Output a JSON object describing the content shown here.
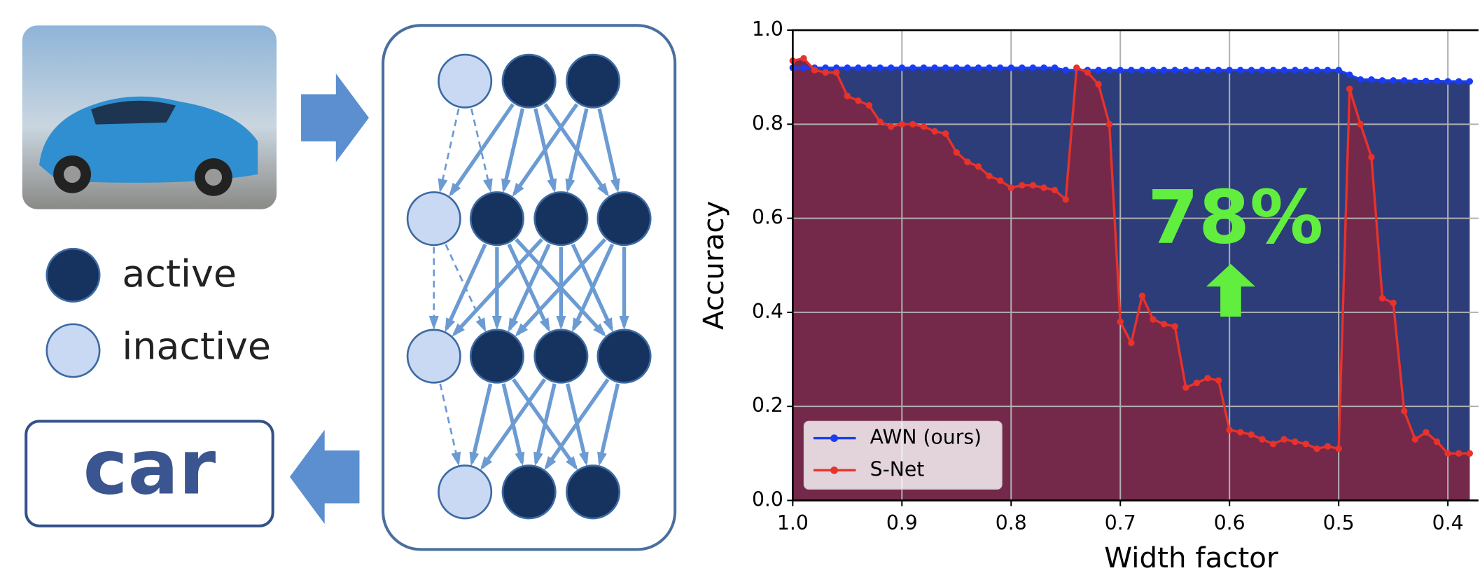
{
  "labels": {
    "active": "active",
    "inactive": "inactive",
    "output": "car"
  },
  "chart_data": {
    "type": "line",
    "x_label": "Width factor",
    "y_label": "Accuracy",
    "annotation": "78%",
    "x": [
      1.0,
      0.99,
      0.98,
      0.97,
      0.96,
      0.95,
      0.94,
      0.93,
      0.92,
      0.91,
      0.9,
      0.89,
      0.88,
      0.87,
      0.86,
      0.85,
      0.84,
      0.83,
      0.82,
      0.81,
      0.8,
      0.79,
      0.78,
      0.77,
      0.76,
      0.75,
      0.74,
      0.73,
      0.72,
      0.71,
      0.7,
      0.69,
      0.68,
      0.67,
      0.66,
      0.65,
      0.64,
      0.63,
      0.62,
      0.61,
      0.6,
      0.59,
      0.58,
      0.57,
      0.56,
      0.55,
      0.54,
      0.53,
      0.52,
      0.51,
      0.5,
      0.49,
      0.48,
      0.47,
      0.46,
      0.45,
      0.44,
      0.43,
      0.42,
      0.41,
      0.4,
      0.39,
      0.38
    ],
    "xlim": [
      1.0,
      0.372
    ],
    "ylim": [
      0,
      1
    ],
    "xticks": [
      {
        "value": 1,
        "label": "1.0"
      },
      0.9,
      0.8,
      0.7,
      0.6,
      0.5,
      0.4
    ],
    "yticks": [
      {
        "value": 0,
        "label": "0.0"
      },
      0.2,
      0.4,
      0.6,
      0.8,
      {
        "value": 1,
        "label": "1.0"
      }
    ],
    "grid": true,
    "legend": "lower left",
    "series": [
      {
        "name": "AWN (ours)",
        "color": "#1a3cf5",
        "fill": "#2c3d7a",
        "values": [
          0.92,
          0.92,
          0.92,
          0.92,
          0.92,
          0.92,
          0.92,
          0.92,
          0.92,
          0.92,
          0.92,
          0.92,
          0.92,
          0.92,
          0.92,
          0.92,
          0.92,
          0.92,
          0.92,
          0.92,
          0.92,
          0.92,
          0.92,
          0.92,
          0.92,
          0.915,
          0.915,
          0.915,
          0.915,
          0.915,
          0.915,
          0.915,
          0.915,
          0.915,
          0.915,
          0.915,
          0.915,
          0.915,
          0.915,
          0.915,
          0.915,
          0.915,
          0.915,
          0.915,
          0.915,
          0.915,
          0.915,
          0.915,
          0.915,
          0.915,
          0.915,
          0.905,
          0.895,
          0.895,
          0.893,
          0.893,
          0.893,
          0.892,
          0.892,
          0.892,
          0.891,
          0.891,
          0.891
        ]
      },
      {
        "name": "S-Net",
        "color": "#e8322a",
        "fill": "#74294a",
        "values": [
          0.935,
          0.94,
          0.915,
          0.91,
          0.91,
          0.86,
          0.85,
          0.84,
          0.805,
          0.795,
          0.8,
          0.8,
          0.795,
          0.785,
          0.78,
          0.74,
          0.72,
          0.71,
          0.69,
          0.68,
          0.665,
          0.67,
          0.67,
          0.665,
          0.66,
          0.64,
          0.92,
          0.91,
          0.885,
          0.8,
          0.38,
          0.335,
          0.435,
          0.385,
          0.375,
          0.37,
          0.24,
          0.25,
          0.26,
          0.255,
          0.15,
          0.145,
          0.14,
          0.13,
          0.12,
          0.13,
          0.125,
          0.12,
          0.11,
          0.115,
          0.11,
          0.875,
          0.8,
          0.73,
          0.43,
          0.42,
          0.19,
          0.13,
          0.145,
          0.125,
          0.1,
          0.1,
          0.1
        ]
      }
    ]
  }
}
